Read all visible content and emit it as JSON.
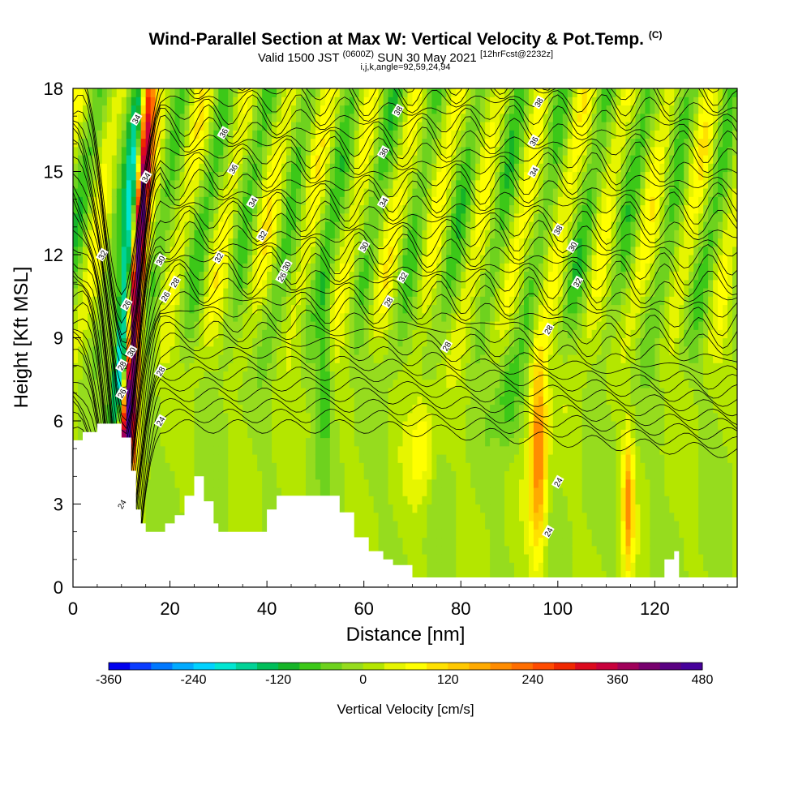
{
  "title": {
    "main": "Wind-Parallel Section at Max W: Vertical Velocity & Pot.Temp.",
    "copyright": "(C)",
    "valid_prefix": "Valid 1500 JST",
    "valid_utc": "(0600Z)",
    "valid_date": "SUN 30 May 2021",
    "forecast": "[12hrFcst@2232z]",
    "params": "i,j,k,angle=92,59,24,94"
  },
  "chart_data": {
    "type": "heatmap",
    "xlabel": "Distance [nm]",
    "ylabel": "Height [Kft MSL]",
    "xlim": [
      0,
      137
    ],
    "ylim": [
      0,
      18
    ],
    "x_ticks": [
      "0",
      "20",
      "40",
      "60",
      "80",
      "100",
      "120"
    ],
    "y_ticks": [
      "0",
      "3",
      "6",
      "9",
      "12",
      "15",
      "18"
    ],
    "colorbar": {
      "label": "Vertical Velocity [cm/s]",
      "tick_labels": [
        "-360",
        "-240",
        "-120",
        "0",
        "120",
        "240",
        "360",
        "480"
      ],
      "levels": [
        -360,
        -330,
        -300,
        -270,
        -240,
        -210,
        -180,
        -150,
        -120,
        -90,
        -60,
        -30,
        0,
        30,
        60,
        90,
        120,
        150,
        180,
        210,
        240,
        270,
        300,
        330,
        360,
        390,
        420,
        450,
        480
      ],
      "colors": [
        "#0000ee",
        "#0a3cff",
        "#0078ff",
        "#00aaff",
        "#00d2ff",
        "#00e6d2",
        "#00d296",
        "#00be5a",
        "#16b428",
        "#3cc818",
        "#6ed21e",
        "#96dc1e",
        "#b4e600",
        "#e6f500",
        "#ffff00",
        "#ffe100",
        "#ffc800",
        "#ffaa00",
        "#ff8c00",
        "#ff6e00",
        "#ff4b00",
        "#f02800",
        "#dc0a1e",
        "#c8003c",
        "#a0005a",
        "#78006e",
        "#5a0082",
        "#46009b"
      ]
    },
    "theta_contour_labels": [
      "24",
      "24",
      "24",
      "26",
      "26",
      "26",
      "28",
      "28",
      "28",
      "28",
      "28",
      "30",
      "30",
      "30",
      "30",
      "32",
      "32",
      "32",
      "32",
      "34",
      "34",
      "34",
      "34",
      "36",
      "36",
      "36",
      "36",
      "38",
      "38",
      "38",
      "30",
      "32",
      "34",
      "28",
      "26",
      "24"
    ],
    "theta_contour_labels_note": "",
    "terrain_kft": [
      [
        0,
        5.3
      ],
      [
        2,
        5.6
      ],
      [
        5,
        5.9
      ],
      [
        8,
        5.9
      ],
      [
        10,
        5.4
      ],
      [
        12,
        4.2
      ],
      [
        13,
        2.8
      ],
      [
        14,
        2.3
      ],
      [
        15,
        2.0
      ],
      [
        18,
        2.0
      ],
      [
        19,
        2.3
      ],
      [
        21,
        2.6
      ],
      [
        23,
        3.3
      ],
      [
        25,
        4.0
      ],
      [
        27,
        3.1
      ],
      [
        29,
        2.3
      ],
      [
        30,
        2.0
      ],
      [
        38,
        2.0
      ],
      [
        40,
        2.8
      ],
      [
        42,
        3.3
      ],
      [
        53,
        3.3
      ],
      [
        55,
        2.7
      ],
      [
        58,
        1.8
      ],
      [
        61,
        1.3
      ],
      [
        64,
        1.0
      ],
      [
        66,
        0.8
      ],
      [
        70,
        0.35
      ],
      [
        121,
        0.35
      ],
      [
        122,
        1.0
      ],
      [
        124,
        1.3
      ],
      [
        125,
        0.35
      ],
      [
        137,
        0.35
      ]
    ]
  }
}
